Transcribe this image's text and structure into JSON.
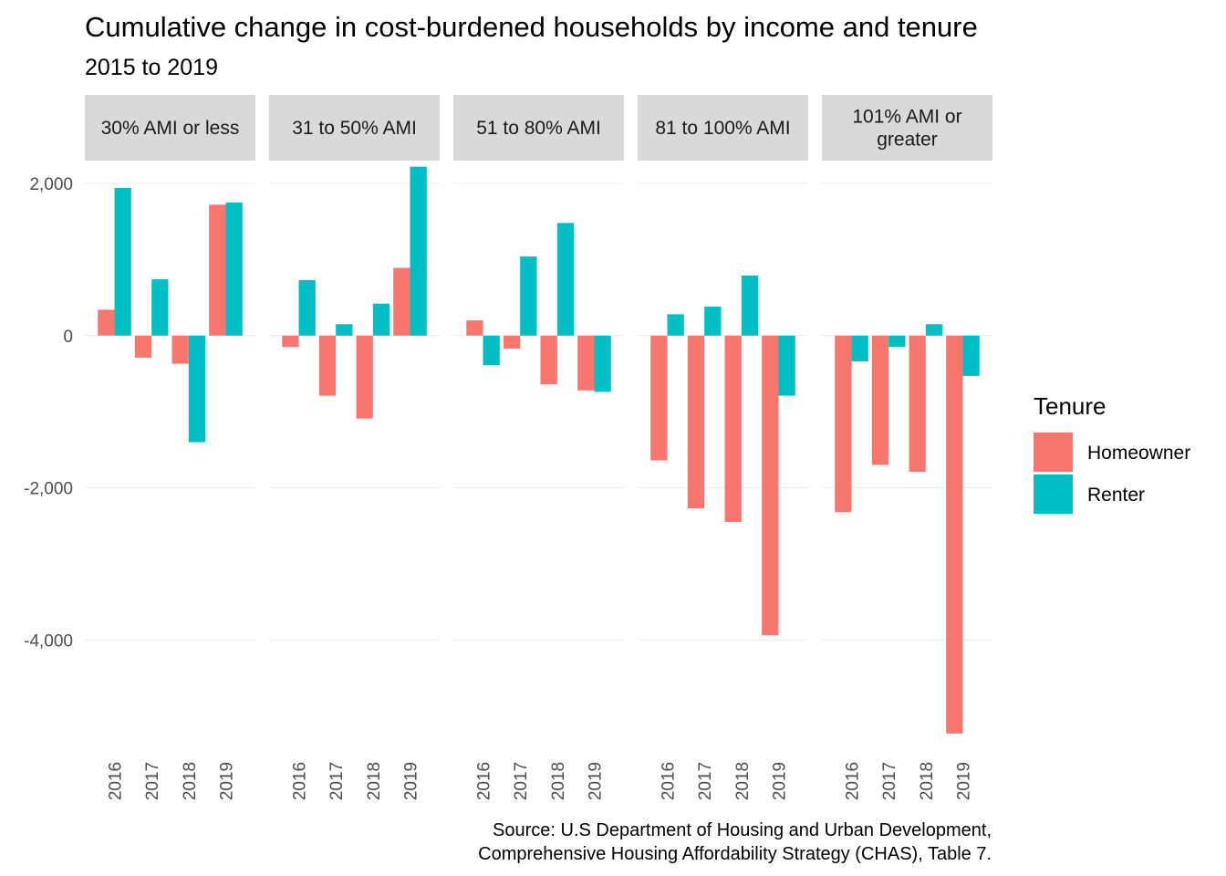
{
  "chart_data": {
    "type": "bar",
    "title": "Cumulative change in cost-burdened households by income and tenure",
    "subtitle": "2015 to 2019",
    "xlabel": "",
    "ylabel": "",
    "ylim": [
      -5400,
      2300
    ],
    "y_ticks": [
      2000,
      0,
      -2000,
      -4000
    ],
    "y_tick_labels": [
      "2,000",
      "0",
      "-2,000",
      "-4,000"
    ],
    "categories": [
      "2016",
      "2017",
      "2018",
      "2019"
    ],
    "grid": true,
    "legend": {
      "title": "Tenure",
      "position": "right",
      "entries": [
        {
          "name": "Homeowner",
          "color": "#F8766D"
        },
        {
          "name": "Renter",
          "color": "#00BFC4"
        }
      ]
    },
    "facets": [
      {
        "label": [
          "30% AMI or less"
        ],
        "series": [
          {
            "name": "Homeowner",
            "values": [
              340,
              -290,
              -370,
              1720
            ]
          },
          {
            "name": "Renter",
            "values": [
              1940,
              740,
              -1400,
              1750
            ]
          }
        ]
      },
      {
        "label": [
          "31 to 50% AMI"
        ],
        "series": [
          {
            "name": "Homeowner",
            "values": [
              -150,
              -790,
              -1090,
              890
            ]
          },
          {
            "name": "Renter",
            "values": [
              730,
              150,
              420,
              2220
            ]
          }
        ]
      },
      {
        "label": [
          "51 to 80% AMI"
        ],
        "series": [
          {
            "name": "Homeowner",
            "values": [
              200,
              -170,
              -640,
              -720
            ]
          },
          {
            "name": "Renter",
            "values": [
              -390,
              1040,
              1480,
              -740
            ]
          }
        ]
      },
      {
        "label": [
          "81 to 100% AMI"
        ],
        "series": [
          {
            "name": "Homeowner",
            "values": [
              -1640,
              -2270,
              -2450,
              -3940
            ]
          },
          {
            "name": "Renter",
            "values": [
              280,
              380,
              790,
              -790
            ]
          }
        ]
      },
      {
        "label": [
          "101% AMI or",
          "greater"
        ],
        "series": [
          {
            "name": "Homeowner",
            "values": [
              -2320,
              -1700,
              -1790,
              -5230
            ]
          },
          {
            "name": "Renter",
            "values": [
              -340,
              -150,
              150,
              -530
            ]
          }
        ]
      }
    ],
    "caption": [
      "Source: U.S Department of Housing and Urban Development,",
      "Comprehensive Housing Affordability Strategy (CHAS), Table 7."
    ]
  }
}
